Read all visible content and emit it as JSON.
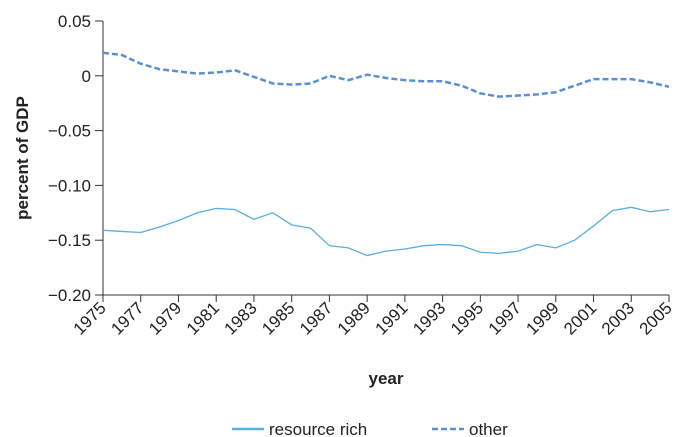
{
  "chart_data": {
    "type": "line",
    "x_label": "year",
    "y_label": "percent of GDP",
    "x": [
      1975,
      1976,
      1977,
      1978,
      1979,
      1980,
      1981,
      1982,
      1983,
      1984,
      1985,
      1986,
      1987,
      1988,
      1989,
      1990,
      1991,
      1992,
      1993,
      1994,
      1995,
      1996,
      1997,
      1998,
      1999,
      2000,
      2001,
      2002,
      2003,
      2004,
      2005
    ],
    "series": [
      {
        "name": "resource rich",
        "color": "#5aaee0",
        "dash": "solid",
        "values": [
          -0.141,
          -0.142,
          -0.143,
          -0.138,
          -0.132,
          -0.125,
          -0.121,
          -0.122,
          -0.131,
          -0.125,
          -0.136,
          -0.139,
          -0.155,
          -0.157,
          -0.164,
          -0.16,
          -0.158,
          -0.155,
          -0.154,
          -0.155,
          -0.161,
          -0.162,
          -0.16,
          -0.154,
          -0.157,
          -0.15,
          -0.137,
          -0.123,
          -0.12,
          -0.124,
          -0.122
        ]
      },
      {
        "name": "other",
        "color": "#5b8fd0",
        "dash": "dashed",
        "values": [
          0.021,
          0.019,
          0.011,
          0.006,
          0.004,
          0.002,
          0.003,
          0.005,
          -0.001,
          -0.007,
          -0.008,
          -0.007,
          0.0,
          -0.004,
          0.001,
          -0.002,
          -0.004,
          -0.005,
          -0.005,
          -0.009,
          -0.016,
          -0.019,
          -0.018,
          -0.017,
          -0.015,
          -0.009,
          -0.003,
          -0.003,
          -0.003,
          -0.006,
          -0.01
        ]
      }
    ],
    "xlim": [
      1975,
      2005
    ],
    "xticks": [
      1975,
      1977,
      1979,
      1981,
      1983,
      1985,
      1987,
      1989,
      1991,
      1993,
      1995,
      1997,
      1999,
      2001,
      2003,
      2005
    ],
    "ylim": [
      -0.2,
      0.05
    ],
    "yticks": [
      {
        "value": -0.2,
        "label": "−0.20"
      },
      {
        "value": -0.15,
        "label": "−0.15"
      },
      {
        "value": -0.1,
        "label": "−0.10"
      },
      {
        "value": -0.05,
        "label": "−0.05"
      },
      0,
      0.05
    ],
    "legend": "bottom"
  }
}
